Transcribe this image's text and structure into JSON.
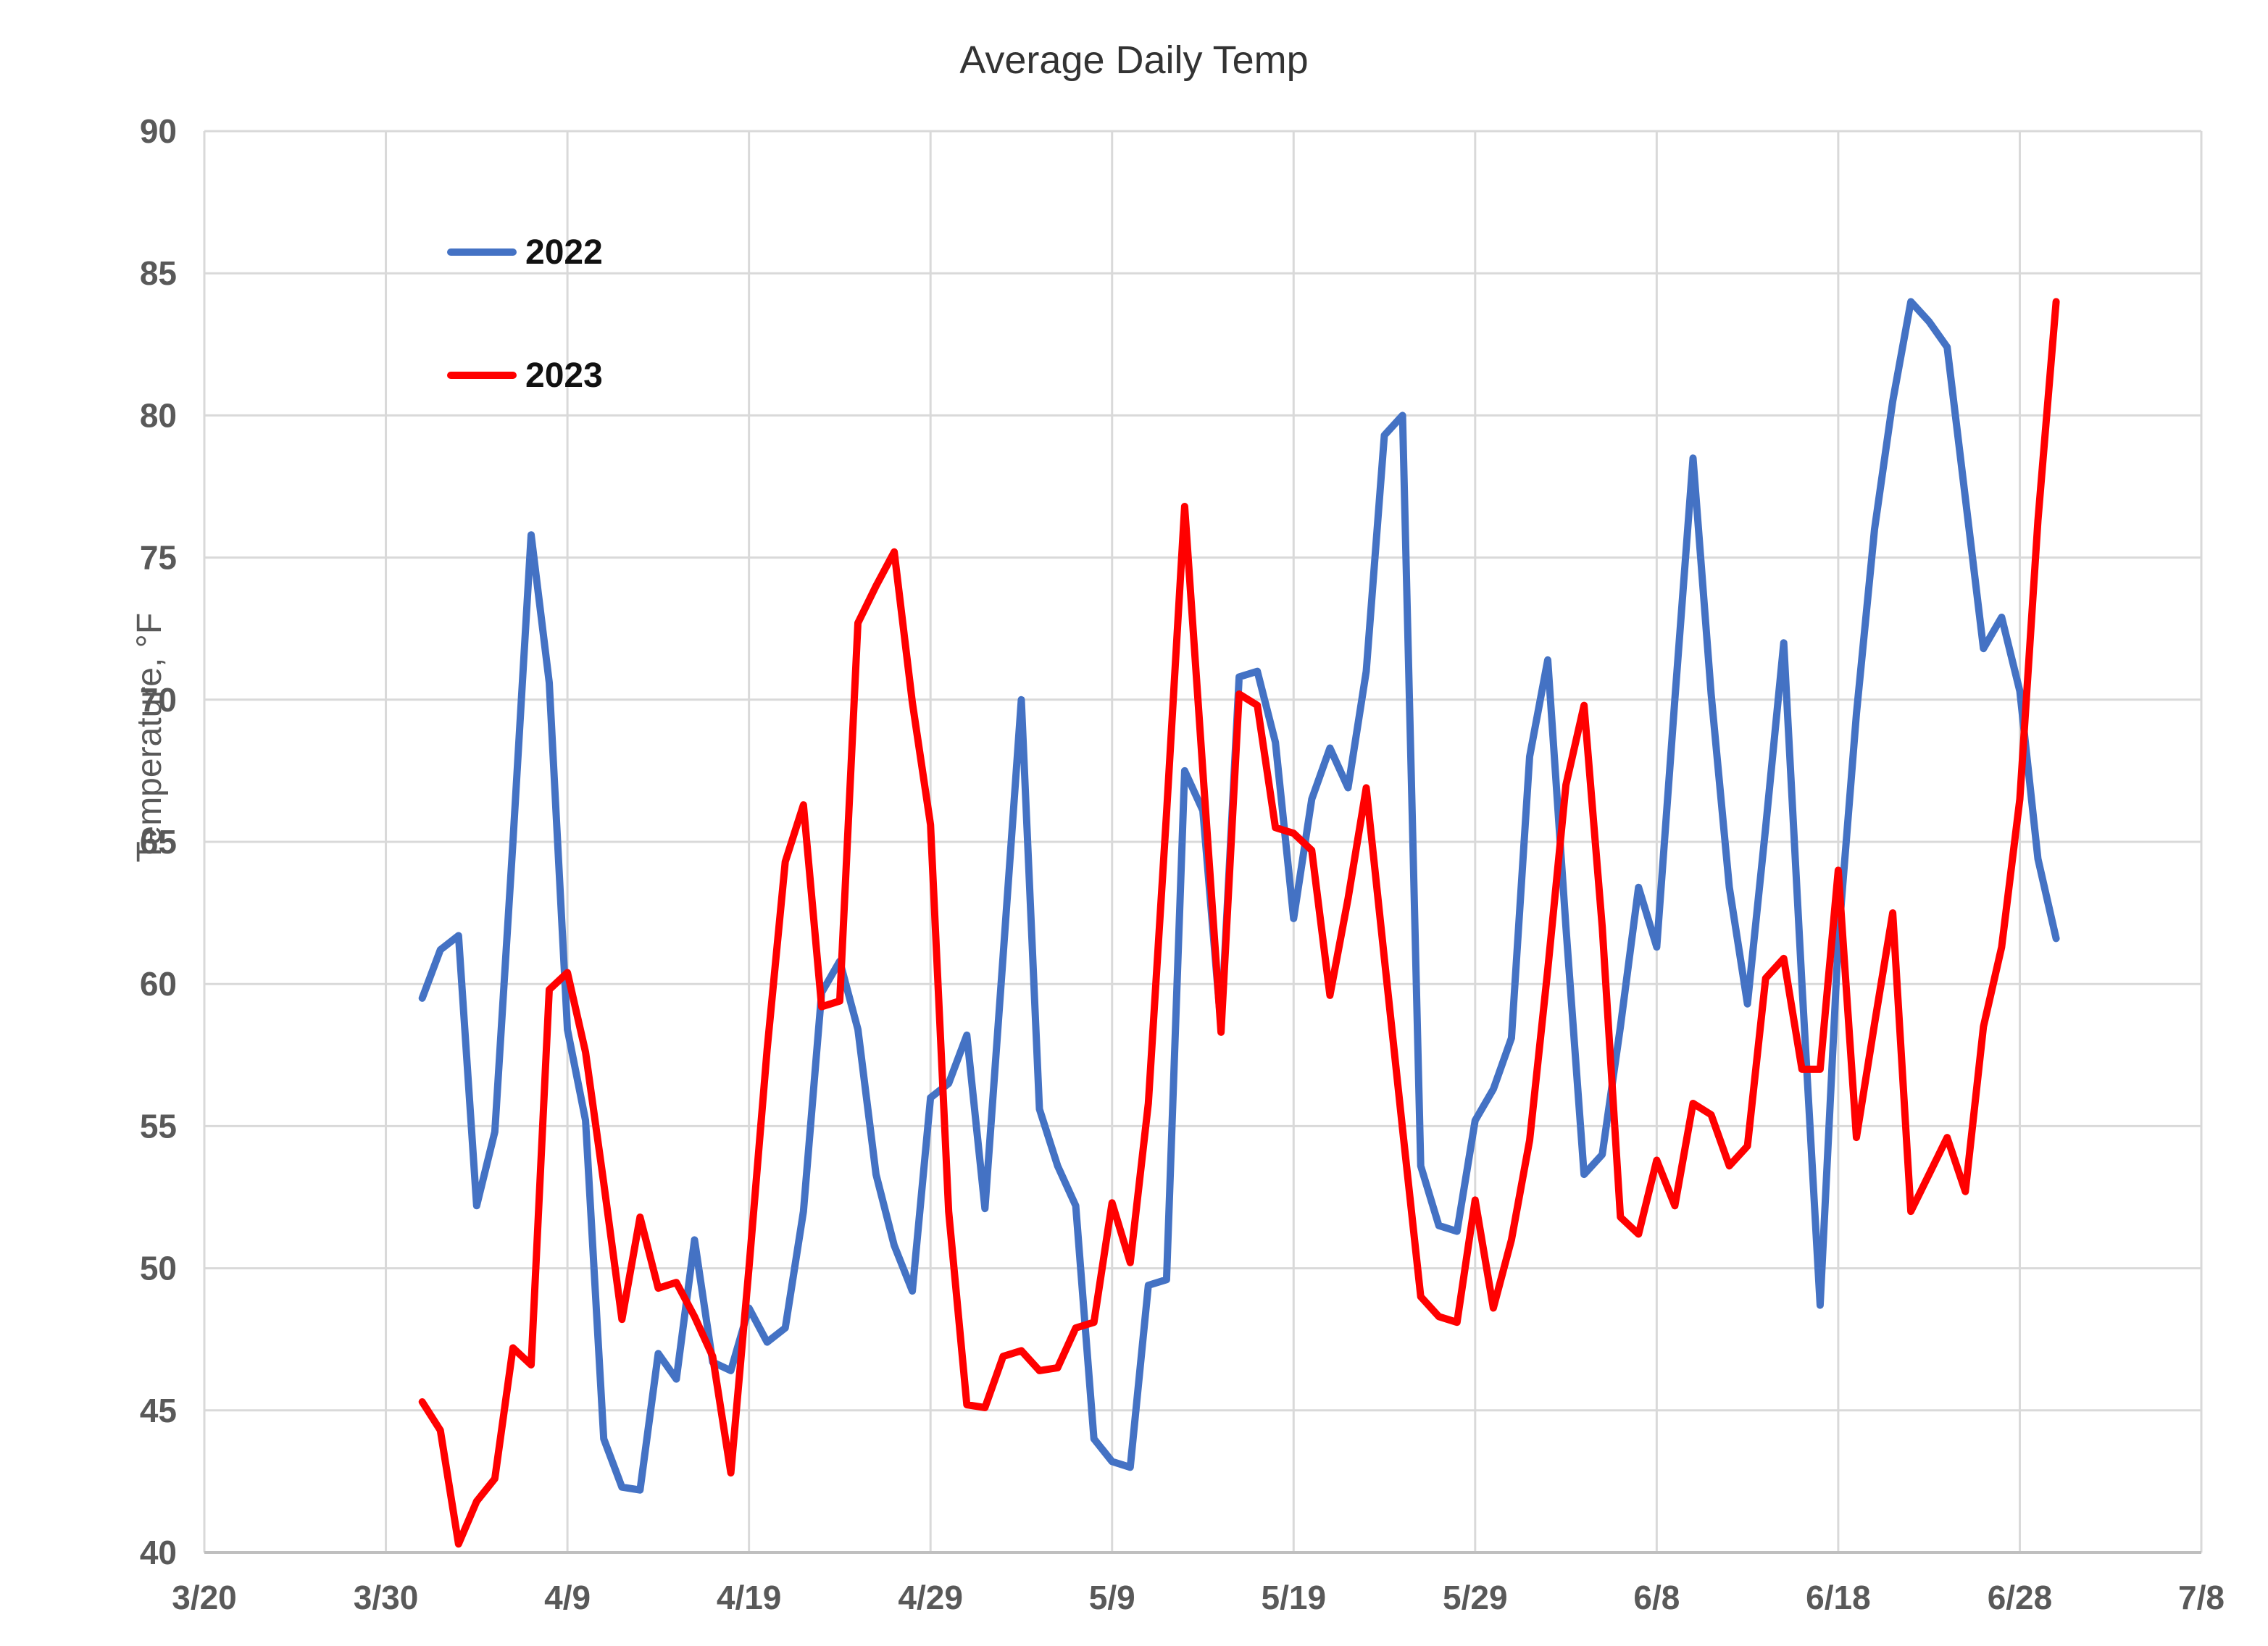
{
  "title": "Average Daily Temp",
  "legend": [
    {
      "label": "2022",
      "color": "#4472C4"
    },
    {
      "label": "2023",
      "color": "#FF0000"
    }
  ],
  "colors": {
    "series_2022": "#4472C4",
    "series_2023": "#FF0000",
    "gridline": "#D9D9D9",
    "axis_line": "#BFBFBF",
    "tick_text": "#595959",
    "title_text": "#333333",
    "legend_text": "#111111",
    "background": "#FFFFFF"
  },
  "chart_data": {
    "type": "line",
    "title": "Average Daily Temp",
    "xlabel": "",
    "ylabel": "Temperature, °F",
    "ylim": [
      40,
      90
    ],
    "ytick_step": 5,
    "ytick_labels": [
      "40",
      "45",
      "50",
      "55",
      "60",
      "65",
      "70",
      "75",
      "80",
      "85",
      "90"
    ],
    "x_tick_labels": [
      "3/20",
      "3/30",
      "4/9",
      "4/19",
      "4/29",
      "5/9",
      "5/19",
      "5/29",
      "6/8",
      "6/18",
      "6/28",
      "7/8"
    ],
    "x_axis_start": "3/20",
    "x_axis_days_total": 110,
    "x_tick_interval_days": 10,
    "grid": true,
    "legend_position": "inside-top-left",
    "x": [
      "4/1",
      "4/2",
      "4/3",
      "4/4",
      "4/5",
      "4/6",
      "4/7",
      "4/8",
      "4/9",
      "4/10",
      "4/11",
      "4/12",
      "4/13",
      "4/14",
      "4/15",
      "4/16",
      "4/17",
      "4/18",
      "4/19",
      "4/20",
      "4/21",
      "4/22",
      "4/23",
      "4/24",
      "4/25",
      "4/26",
      "4/27",
      "4/28",
      "4/29",
      "4/30",
      "5/1",
      "5/2",
      "5/3",
      "5/4",
      "5/5",
      "5/6",
      "5/7",
      "5/8",
      "5/9",
      "5/10",
      "5/11",
      "5/12",
      "5/13",
      "5/14",
      "5/15",
      "5/16",
      "5/17",
      "5/18",
      "5/19",
      "5/20",
      "5/21",
      "5/22",
      "5/23",
      "5/24",
      "5/25",
      "5/26",
      "5/27",
      "5/28",
      "5/29",
      "5/30",
      "5/31",
      "6/1",
      "6/2",
      "6/3",
      "6/4",
      "6/5",
      "6/6",
      "6/7",
      "6/8",
      "6/9",
      "6/10",
      "6/11",
      "6/12",
      "6/13",
      "6/14",
      "6/15",
      "6/16",
      "6/17",
      "6/18",
      "6/19",
      "6/20",
      "6/21",
      "6/22",
      "6/23",
      "6/24",
      "6/25",
      "6/26",
      "6/27",
      "6/28",
      "6/29",
      "6/30"
    ],
    "series": [
      {
        "name": "2022",
        "color": "#4472C4",
        "values": [
          59.5,
          61.2,
          61.7,
          52.2,
          54.8,
          65.0,
          75.8,
          70.6,
          58.4,
          55.2,
          44.0,
          42.3,
          42.2,
          47.0,
          46.1,
          51.0,
          46.7,
          46.4,
          48.6,
          47.4,
          47.9,
          52.0,
          59.7,
          60.8,
          58.4,
          53.3,
          50.8,
          49.2,
          56.0,
          56.5,
          58.2,
          52.1,
          61.0,
          70.0,
          55.6,
          53.6,
          52.2,
          44.0,
          43.2,
          43.0,
          49.4,
          49.6,
          67.5,
          66.1,
          58.5,
          70.8,
          71.0,
          68.5,
          62.3,
          66.5,
          68.3,
          66.9,
          71.0,
          79.3,
          80.0,
          53.6,
          51.5,
          51.3,
          55.2,
          56.3,
          58.1,
          68.0,
          71.4,
          62.0,
          53.3,
          54.0,
          58.5,
          63.4,
          61.3,
          70.0,
          78.5,
          70.2,
          63.4,
          59.3,
          65.5,
          72.0,
          60.0,
          48.7,
          61.5,
          69.5,
          76.0,
          80.5,
          84.0,
          83.3,
          82.4,
          77.1,
          71.8,
          72.9,
          70.3,
          64.4,
          61.6
        ]
      },
      {
        "name": "2023",
        "color": "#FF0000",
        "values": [
          45.3,
          44.3,
          40.3,
          41.8,
          42.6,
          47.2,
          46.6,
          59.8,
          60.4,
          57.6,
          53.0,
          48.2,
          51.8,
          49.3,
          49.5,
          48.3,
          46.9,
          42.8,
          50.0,
          57.7,
          64.3,
          66.3,
          59.2,
          59.4,
          72.7,
          74.0,
          75.2,
          69.9,
          65.6,
          52.0,
          45.2,
          45.1,
          46.9,
          47.1,
          46.4,
          46.5,
          47.9,
          48.1,
          52.3,
          50.2,
          55.8,
          66.0,
          76.8,
          67.5,
          58.3,
          70.2,
          69.8,
          65.5,
          65.3,
          64.7,
          59.6,
          63.0,
          66.9,
          60.9,
          54.9,
          49.0,
          48.3,
          48.1,
          52.4,
          48.6,
          51.0,
          54.5,
          60.5,
          67.0,
          69.8,
          62.0,
          51.8,
          51.2,
          53.8,
          52.2,
          55.8,
          55.4,
          53.6,
          54.3,
          60.2,
          60.9,
          57.0,
          57.0,
          64.0,
          54.6,
          58.6,
          62.5,
          52.0,
          53.3,
          54.6,
          52.7,
          58.5,
          61.3,
          66.5,
          76.3,
          84.0
        ]
      }
    ]
  }
}
